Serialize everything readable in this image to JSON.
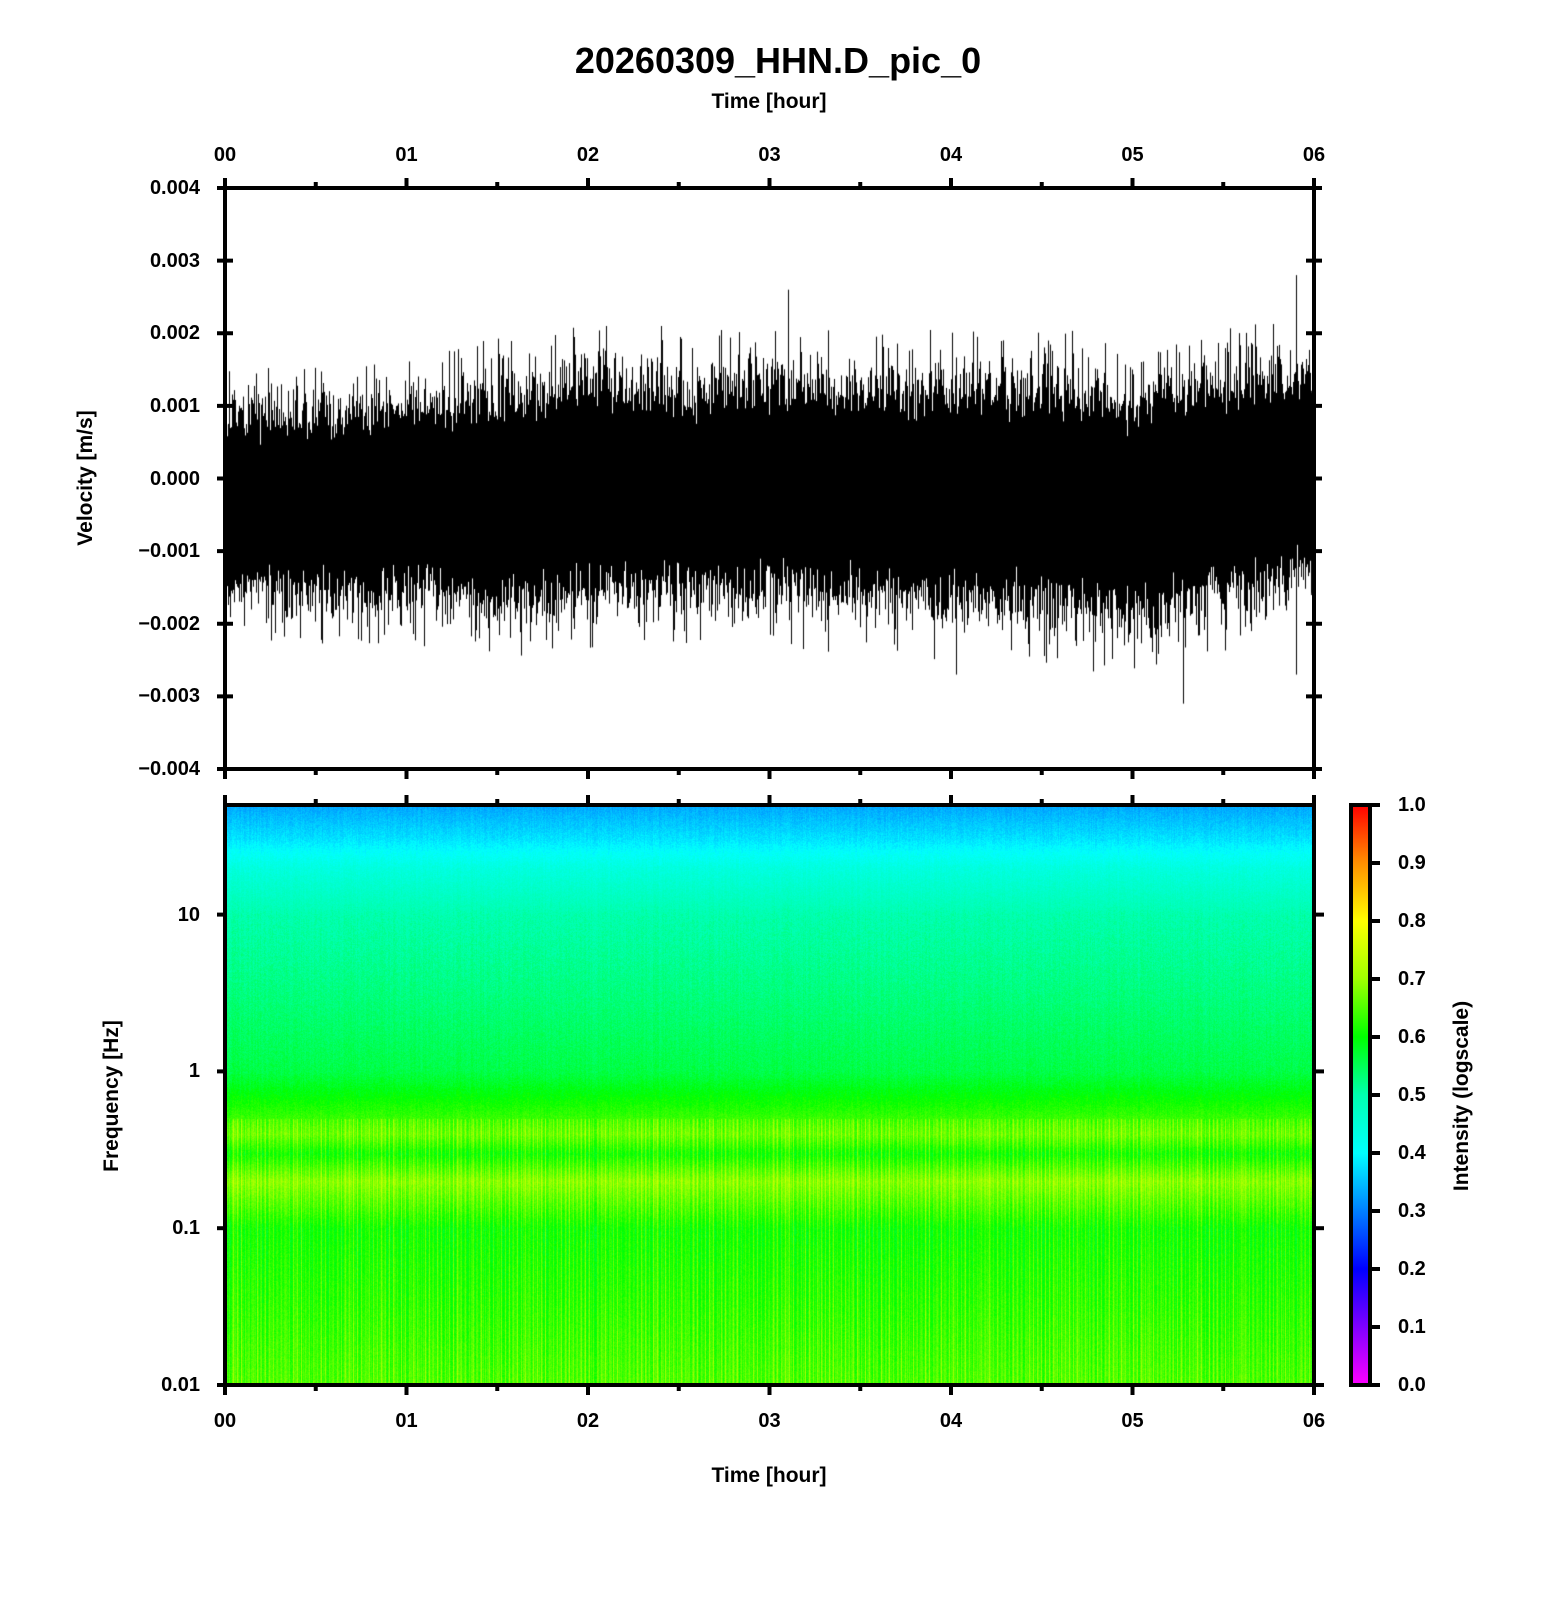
{
  "chart_data": [
    {
      "type": "line",
      "title": "20260309_HHN.D_pic_0",
      "xlabel": "Time [hour]",
      "ylabel": "Velocity [m/s]",
      "xlim": [
        0,
        6
      ],
      "ylim": [
        -0.004,
        0.004
      ],
      "x_ticks": [
        "00",
        "01",
        "02",
        "03",
        "04",
        "05",
        "06"
      ],
      "y_ticks": [
        "0.004",
        "0.003",
        "0.002",
        "0.001",
        "0.000",
        "−0.001",
        "−0.002",
        "−0.003",
        "−0.004"
      ],
      "y_tick_values": [
        0.004,
        0.003,
        0.002,
        0.001,
        0,
        -0.001,
        -0.002,
        -0.003,
        -0.004
      ],
      "series_description": "seismic velocity trace",
      "envelope_hours": [
        0,
        0.5,
        1,
        1.5,
        2,
        2.5,
        3,
        3.5,
        4,
        4.5,
        5,
        5.5,
        6
      ],
      "envelope_max": [
        0.001,
        0.001,
        0.0012,
        0.0013,
        0.0015,
        0.0014,
        0.0015,
        0.0014,
        0.0014,
        0.0014,
        0.0013,
        0.0015,
        0.0016
      ],
      "envelope_min": [
        -0.0016,
        -0.0018,
        -0.0017,
        -0.0019,
        -0.0018,
        -0.0017,
        -0.0017,
        -0.0018,
        -0.0019,
        -0.0019,
        -0.0021,
        -0.0018,
        -0.0014
      ],
      "spikes": [
        {
          "x": 3.1,
          "y": 0.0026
        },
        {
          "x": 5.9,
          "y": 0.0028
        },
        {
          "x": 5.28,
          "y": -0.0031
        },
        {
          "x": 5.9,
          "y": -0.0027
        },
        {
          "x": 4.03,
          "y": -0.0027
        },
        {
          "x": 2.1,
          "y": 0.0021
        },
        {
          "x": 2.4,
          "y": 0.0021
        },
        {
          "x": 0.45,
          "y": -0.0017
        }
      ]
    },
    {
      "type": "heatmap",
      "xlabel": "Time [hour]",
      "ylabel": "Frequency [Hz]",
      "xlim": [
        0,
        6
      ],
      "ylim": [
        0.01,
        50
      ],
      "yscale": "log",
      "x_ticks": [
        "00",
        "01",
        "02",
        "03",
        "04",
        "05",
        "06"
      ],
      "y_ticks": [
        "10",
        "1",
        "0.1",
        "0.01"
      ],
      "y_tick_values": [
        10,
        1,
        0.1,
        0.01
      ],
      "intensity_profile_freq": [
        50,
        30,
        20,
        10,
        3,
        1,
        0.4,
        0.3,
        0.2,
        0.1,
        0.03,
        0.01
      ],
      "intensity_profile_value": [
        0.33,
        0.38,
        0.44,
        0.5,
        0.53,
        0.56,
        0.66,
        0.6,
        0.68,
        0.6,
        0.62,
        0.64
      ],
      "colorbar": {
        "label": "Intensity (logscale)",
        "range": [
          0,
          1
        ],
        "ticks": [
          "1.0",
          "0.9",
          "0.8",
          "0.7",
          "0.6",
          "0.5",
          "0.4",
          "0.3",
          "0.2",
          "0.1",
          "0.0"
        ],
        "tick_values": [
          1,
          0.9,
          0.8,
          0.7,
          0.6,
          0.5,
          0.4,
          0.3,
          0.2,
          0.1,
          0
        ],
        "colors": [
          "#ff00ff",
          "#8000ff",
          "#0000ff",
          "#0080ff",
          "#00ffff",
          "#00ffb0",
          "#00ff00",
          "#a0ff00",
          "#ffff00",
          "#ff9000",
          "#ff0000"
        ]
      }
    }
  ]
}
